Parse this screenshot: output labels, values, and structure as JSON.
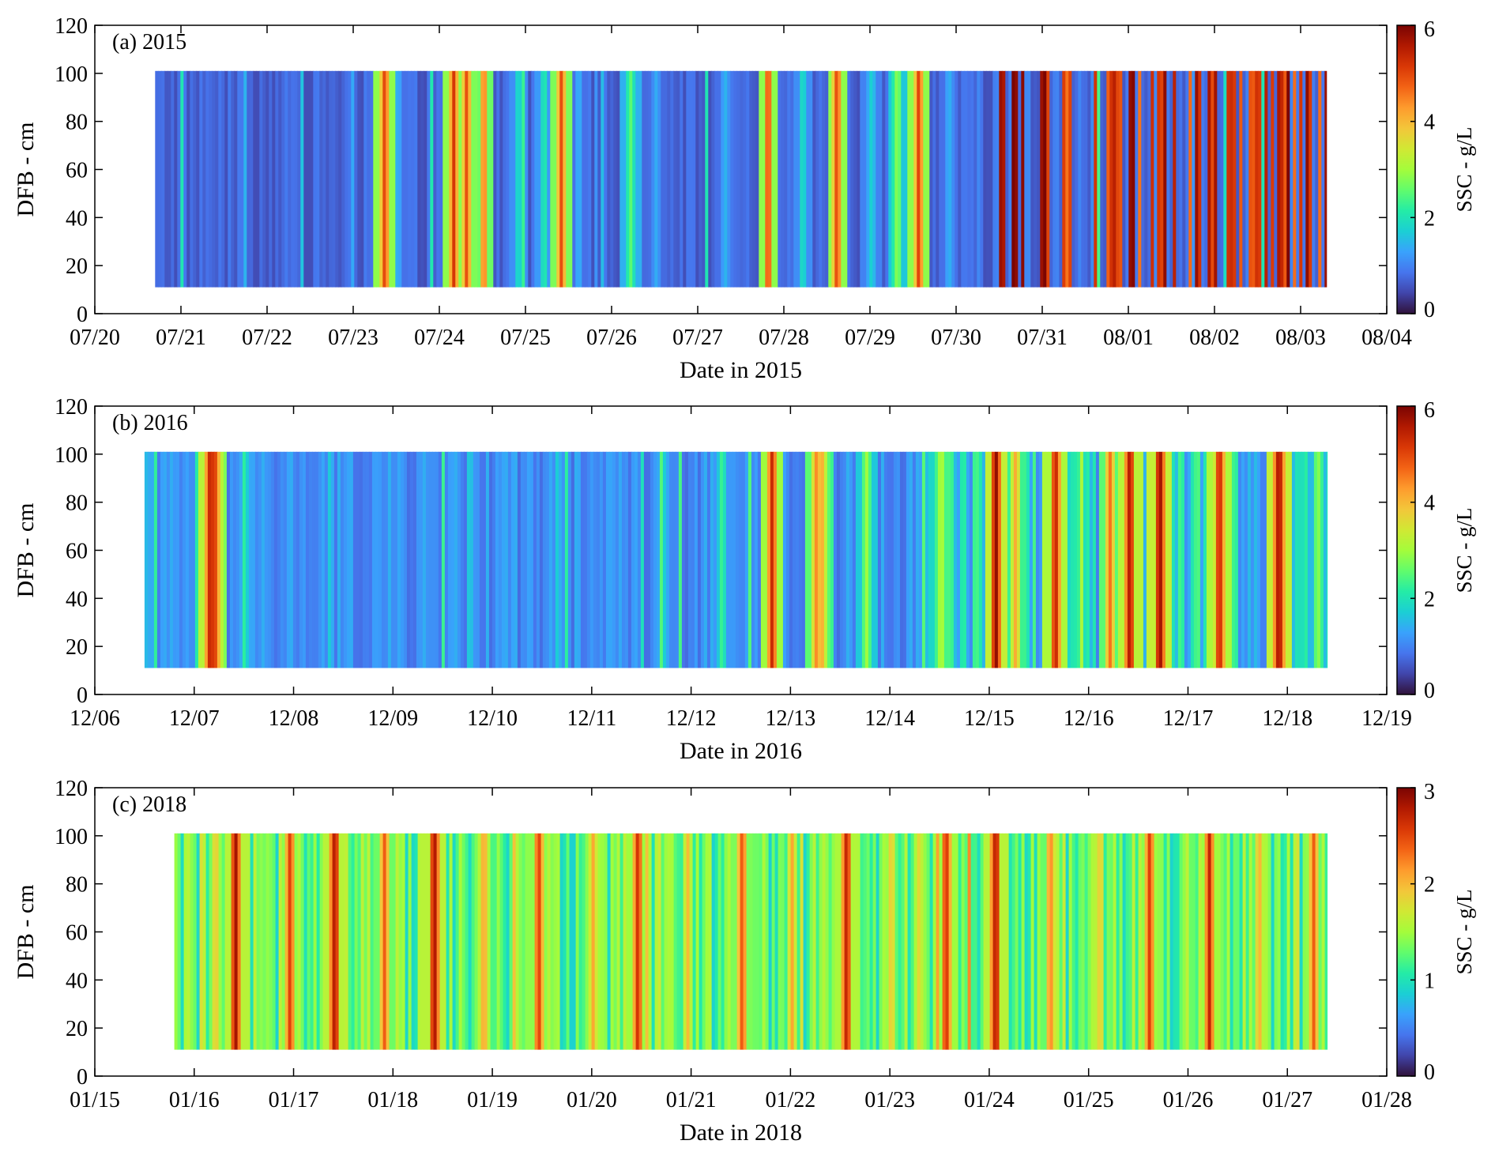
{
  "colormap": [
    "#30123b",
    "#4145ab",
    "#4675ed",
    "#39a2fc",
    "#1bcfd4",
    "#24eca6",
    "#61fc6c",
    "#a4fc3b",
    "#d1e834",
    "#f3c63a",
    "#fe9b2d",
    "#f36315",
    "#d93806",
    "#b11901",
    "#7a0402"
  ],
  "chart_data": [
    {
      "type": "heatmap",
      "title": "(a) 2015",
      "xlabel": "Date in 2015",
      "ylabel": "DFB - cm",
      "colorbar_label": "SSC - g/L",
      "x_ticks": [
        "07/20",
        "07/21",
        "07/22",
        "07/23",
        "07/24",
        "07/25",
        "07/26",
        "07/27",
        "07/28",
        "07/29",
        "07/30",
        "07/31",
        "08/01",
        "08/02",
        "08/03",
        "08/04"
      ],
      "y_ticks": [
        0,
        20,
        40,
        60,
        80,
        100,
        120
      ],
      "colorbar_ticks": [
        0,
        2,
        4,
        6
      ],
      "ylim": [
        0,
        120
      ],
      "clim": [
        0,
        6
      ],
      "data_extent": {
        "x_start_day": 0.7,
        "x_end_day": 14.3,
        "y_bottom_cm": 11,
        "y_top_cm": 101
      },
      "base_level": 0.7,
      "high_period_start_day": 10.4,
      "high_period_level": 5.4,
      "bands": [
        [
          1.3,
          0.9
        ],
        [
          2.3,
          0.9
        ],
        [
          3.2,
          0.7
        ],
        [
          3.35,
          5.2
        ],
        [
          3.5,
          1.5
        ],
        [
          4.1,
          1.2
        ],
        [
          4.15,
          5.2
        ],
        [
          4.3,
          5.0
        ],
        [
          4.5,
          4.8
        ],
        [
          4.9,
          2.0
        ],
        [
          5.2,
          2.2
        ],
        [
          5.4,
          5.0
        ],
        [
          5.6,
          1.5
        ],
        [
          6.2,
          2.6
        ],
        [
          6.5,
          1.4
        ],
        [
          7.3,
          1.5
        ],
        [
          7.8,
          5.2
        ],
        [
          8.2,
          2.0
        ],
        [
          8.6,
          5.2
        ],
        [
          9.0,
          1.8
        ],
        [
          9.3,
          3.0
        ],
        [
          9.55,
          5.2
        ],
        [
          9.9,
          1.5
        ]
      ]
    },
    {
      "type": "heatmap",
      "title": "(b) 2016",
      "xlabel": "Date in 2016",
      "ylabel": "DFB - cm",
      "colorbar_label": "SSC - g/L",
      "x_ticks": [
        "12/06",
        "12/07",
        "12/08",
        "12/09",
        "12/10",
        "12/11",
        "12/12",
        "12/13",
        "12/14",
        "12/15",
        "12/16",
        "12/17",
        "12/18",
        "12/19"
      ],
      "y_ticks": [
        0,
        20,
        40,
        60,
        80,
        100,
        120
      ],
      "colorbar_ticks": [
        0,
        2,
        4,
        6
      ],
      "ylim": [
        0,
        120
      ],
      "clim": [
        0,
        6
      ],
      "data_extent": {
        "x_start_day": 0.5,
        "x_end_day": 12.4,
        "y_bottom_cm": 11,
        "y_top_cm": 101
      },
      "base_level": 1.1,
      "high_period_start_day": 8.3,
      "high_period_level": 2.3,
      "bands": [
        [
          1.1,
          3.8
        ],
        [
          1.15,
          5.8
        ],
        [
          1.2,
          5.0
        ],
        [
          1.5,
          1.9
        ],
        [
          4.2,
          1.4
        ],
        [
          5.7,
          1.9
        ],
        [
          6.3,
          2.2
        ],
        [
          6.8,
          5.4
        ],
        [
          7.25,
          4.6
        ],
        [
          7.3,
          4.2
        ],
        [
          7.75,
          3.0
        ],
        [
          8.5,
          3.3
        ],
        [
          9.05,
          6.0
        ],
        [
          9.25,
          4.2
        ],
        [
          9.65,
          5.6
        ],
        [
          10.2,
          4.6
        ],
        [
          10.4,
          5.8
        ],
        [
          10.7,
          6.0
        ],
        [
          11.3,
          5.6
        ],
        [
          11.9,
          6.0
        ],
        [
          12.3,
          2.8
        ]
      ]
    },
    {
      "type": "heatmap",
      "title": "(c) 2018",
      "xlabel": "Date in 2018",
      "ylabel": "DFB - cm",
      "colorbar_label": "SSC - g/L",
      "x_ticks": [
        "01/15",
        "01/16",
        "01/17",
        "01/18",
        "01/19",
        "01/20",
        "01/21",
        "01/22",
        "01/23",
        "01/24",
        "01/25",
        "01/26",
        "01/27",
        "01/28"
      ],
      "y_ticks": [
        0,
        20,
        40,
        60,
        80,
        100,
        120
      ],
      "colorbar_ticks": [
        0,
        1,
        2,
        3
      ],
      "ylim": [
        0,
        120
      ],
      "clim": [
        0,
        3
      ],
      "data_extent": {
        "x_start_day": 0.8,
        "x_end_day": 12.4,
        "y_bottom_cm": 11,
        "y_top_cm": 101
      },
      "base_level": 1.25,
      "high_period_start_day": 13,
      "high_period_level": 1.25,
      "bands": [
        [
          1.2,
          2.0
        ],
        [
          1.4,
          2.9
        ],
        [
          1.95,
          2.6
        ],
        [
          2.4,
          2.9
        ],
        [
          2.9,
          2.4
        ],
        [
          3.4,
          2.9
        ],
        [
          3.9,
          2.2
        ],
        [
          4.45,
          2.6
        ],
        [
          5.0,
          2.1
        ],
        [
          5.45,
          2.7
        ],
        [
          5.95,
          2.0
        ],
        [
          6.5,
          2.5
        ],
        [
          7.0,
          2.1
        ],
        [
          7.55,
          2.8
        ],
        [
          8.0,
          2.0
        ],
        [
          8.55,
          2.7
        ],
        [
          9.05,
          2.9
        ],
        [
          9.6,
          2.3
        ],
        [
          10.1,
          2.0
        ],
        [
          10.6,
          2.6
        ],
        [
          11.2,
          2.7
        ],
        [
          11.7,
          2.1
        ],
        [
          12.25,
          2.4
        ]
      ]
    }
  ]
}
